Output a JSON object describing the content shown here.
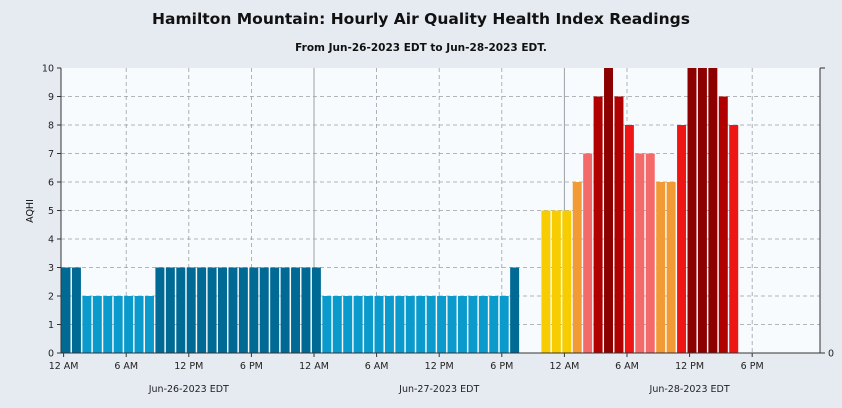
{
  "title": "Hamilton Mountain: Hourly Air Quality Health Index Readings",
  "subtitle": "From Jun-26-2023 EDT to Jun-28-2023 EDT.",
  "chart_data": {
    "type": "bar",
    "ylabel": "AQHI",
    "ylim": [
      0,
      10
    ],
    "yticks": [
      "0",
      "1",
      "2",
      "3",
      "4",
      "5",
      "6",
      "7",
      "8",
      "9",
      "10"
    ],
    "right_axis_label": "0",
    "grid": true,
    "x_start_hour": 0,
    "x_total_hours": 72,
    "x_tick_labels": [
      "12 AM",
      "6 AM",
      "12 PM",
      "6 PM",
      "12 AM",
      "6 AM",
      "12 PM",
      "6 PM",
      "12 AM",
      "6 AM",
      "12 PM",
      "6 PM"
    ],
    "day_labels": [
      "Jun-26-2023 EDT",
      "Jun-27-2023 EDT",
      "Jun-28-2023 EDT"
    ],
    "hourly_values": [
      3,
      3,
      2,
      2,
      2,
      2,
      2,
      2,
      2,
      3,
      3,
      3,
      3,
      3,
      3,
      3,
      3,
      3,
      3,
      3,
      3,
      3,
      3,
      3,
      3,
      2,
      2,
      2,
      2,
      2,
      2,
      2,
      2,
      2,
      2,
      2,
      2,
      2,
      2,
      2,
      2,
      2,
      2,
      3,
      null,
      null,
      5,
      5,
      5,
      6,
      7,
      9,
      10,
      9,
      8,
      7,
      7,
      6,
      6,
      8,
      10,
      10,
      10,
      9,
      8
    ],
    "color_scale": {
      "1": "#0a9acb",
      "2": "#0a9acb",
      "3": "#006a95",
      "4": "#f7cc00",
      "5": "#f7cc00",
      "6": "#f29b35",
      "7": "#f46a6a",
      "8": "#f01515",
      "9": "#b00000",
      "10": "#8c0000"
    }
  }
}
